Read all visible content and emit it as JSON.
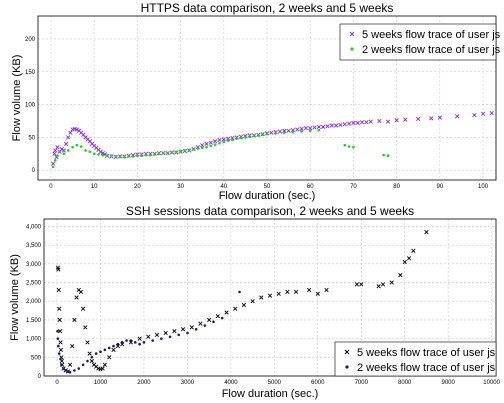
{
  "chart_data": [
    {
      "type": "scatter",
      "title": "HTTPS data comparison, 2 weeks and 5 weeks",
      "xlabel": "Flow duration (sec.)",
      "ylabel": "Flow volume (KB)",
      "xlim": [
        -3,
        103
      ],
      "ylim": [
        -15,
        235
      ],
      "xticks": [
        0,
        10,
        20,
        30,
        40,
        50,
        60,
        70,
        80,
        90,
        100
      ],
      "yticks": [
        0,
        50,
        100,
        150,
        200
      ],
      "grid": true,
      "legend_position": "top-right",
      "series": [
        {
          "name": "5 weeks flow trace of user js",
          "marker": "x",
          "color": "#8a2be2",
          "x": [
            0.5,
            0.8,
            1,
            1.3,
            1.5,
            2,
            2.5,
            3,
            3.5,
            4,
            4.5,
            5,
            5.5,
            6,
            6.5,
            7,
            7.5,
            8,
            8.5,
            9,
            9.5,
            10,
            10.5,
            11,
            11.5,
            12,
            12.5,
            13,
            14,
            15,
            16,
            17,
            18,
            19,
            20,
            21,
            22,
            23,
            24,
            25,
            26,
            27,
            28,
            29,
            30,
            31,
            32,
            33,
            34,
            35,
            36,
            37,
            38,
            39,
            40,
            41,
            42,
            43,
            44,
            45,
            46,
            47,
            48,
            49,
            50,
            51,
            52,
            53,
            54,
            55,
            56,
            57,
            58,
            59,
            60,
            61,
            62,
            63,
            64,
            65,
            66,
            67,
            68,
            69,
            70,
            71,
            72,
            73,
            74,
            76,
            78,
            80,
            82,
            85,
            88,
            90,
            94,
            98,
            100,
            102
          ],
          "y": [
            10,
            25,
            30,
            20,
            35,
            28,
            32,
            30,
            40,
            50,
            57,
            62,
            63,
            62,
            60,
            57,
            54,
            50,
            47,
            44,
            40,
            37,
            34,
            31,
            28,
            26,
            24,
            22,
            21,
            20,
            21,
            21,
            22,
            23,
            24,
            24,
            25,
            25,
            25,
            26,
            26,
            26,
            27,
            27,
            28,
            29,
            30,
            32,
            35,
            38,
            40,
            42,
            44,
            46,
            47,
            48,
            49,
            50,
            51,
            52,
            53,
            53,
            54,
            55,
            56,
            57,
            58,
            59,
            60,
            60,
            61,
            62,
            63,
            64,
            64,
            65,
            66,
            66,
            67,
            68,
            68,
            69,
            70,
            71,
            72,
            72,
            73,
            73,
            74,
            75,
            74,
            76,
            77,
            78,
            79,
            80,
            82,
            84,
            86,
            87
          ]
        },
        {
          "name": "2 weeks flow trace of user js",
          "marker": "dot",
          "color": "#22cc22",
          "x": [
            0.5,
            1,
            1.5,
            2,
            3,
            4,
            5,
            6,
            7,
            8,
            9,
            10,
            11,
            12,
            13,
            14,
            15,
            16,
            17,
            18,
            19,
            20,
            21,
            22,
            23,
            24,
            25,
            26,
            27,
            28,
            29,
            30,
            31,
            32,
            33,
            34,
            35,
            36,
            37,
            38,
            39,
            40,
            41,
            42,
            43,
            44,
            45,
            46,
            47,
            48,
            49,
            50,
            52,
            54,
            56,
            58,
            60,
            62,
            68,
            69,
            70,
            77,
            78
          ],
          "y": [
            5,
            15,
            22,
            28,
            25,
            30,
            35,
            38,
            36,
            30,
            28,
            25,
            24,
            23,
            22,
            22,
            21,
            20,
            20,
            21,
            21,
            22,
            22,
            23,
            23,
            24,
            25,
            26,
            26,
            27,
            28,
            29,
            30,
            31,
            32,
            33,
            34,
            35,
            37,
            39,
            41,
            43,
            45,
            46,
            48,
            49,
            50,
            51,
            52,
            53,
            54,
            55,
            56,
            57,
            58,
            59,
            60,
            61,
            38,
            36,
            35,
            23,
            22
          ]
        }
      ]
    },
    {
      "type": "scatter",
      "title": "SSH sessions data comparison, 2 weeks and 5 weeks",
      "xlabel": "Flow duration (sec.)",
      "ylabel": "Flow volume (KB)",
      "xlim": [
        -300,
        10100
      ],
      "ylim": [
        0,
        4200
      ],
      "xticks": [
        0,
        1000,
        2000,
        3000,
        4000,
        5000,
        6000,
        7000,
        8000,
        9000,
        10000
      ],
      "xtick_labels": [
        "0",
        "1000",
        "2000",
        "3000",
        "4000",
        "5000",
        "6000",
        "7000",
        "8000",
        "9000",
        "10000"
      ],
      "yticks": [
        0,
        500,
        1000,
        1500,
        2000,
        2500,
        3000,
        3500,
        4000
      ],
      "ytick_labels": [
        "0",
        "500",
        "1,000",
        "1,500",
        "2,000",
        "2,500",
        "3,000",
        "3,500",
        "4,000"
      ],
      "grid": true,
      "legend_position": "bottom-right",
      "series": [
        {
          "name": "5 weeks flow trace of user js",
          "marker": "x",
          "color": "#000000",
          "x": [
            20,
            30,
            40,
            50,
            60,
            70,
            80,
            90,
            100,
            110,
            120,
            150,
            200,
            250,
            300,
            350,
            400,
            450,
            500,
            550,
            600,
            650,
            700,
            750,
            800,
            850,
            900,
            950,
            1000,
            1050,
            1100,
            1200,
            1300,
            1400,
            1500,
            1700,
            1900,
            2100,
            2300,
            2500,
            2700,
            2900,
            3100,
            3300,
            3500,
            3700,
            3900,
            4100,
            4300,
            4500,
            4700,
            4900,
            5100,
            5300,
            5500,
            5800,
            6000,
            6200,
            6900,
            7000,
            7400,
            7500,
            7700,
            7900,
            8000,
            8100,
            8200,
            8500
          ],
          "y": [
            2900,
            2850,
            2300,
            1800,
            1500,
            1200,
            900,
            700,
            500,
            400,
            300,
            200,
            150,
            120,
            300,
            800,
            1500,
            2100,
            2300,
            2250,
            1800,
            1300,
            900,
            600,
            400,
            300,
            250,
            200,
            180,
            200,
            300,
            500,
            700,
            800,
            850,
            900,
            1000,
            1050,
            1100,
            1150,
            1200,
            1250,
            1300,
            1400,
            1500,
            1600,
            1700,
            1800,
            1900,
            2000,
            2100,
            2150,
            2200,
            2250,
            2250,
            2300,
            2200,
            2300,
            2450,
            2450,
            2400,
            2450,
            2500,
            2700,
            3050,
            3150,
            3350,
            3850
          ]
        },
        {
          "name": "2 weeks flow trace of user js",
          "marker": "dot",
          "color": "#1a1a6e",
          "x": [
            10,
            20,
            30,
            50,
            80,
            100,
            150,
            200,
            250,
            300,
            400,
            500,
            600,
            700,
            800,
            900,
            1000,
            1100,
            1200,
            1300,
            1400,
            1500,
            1600,
            1700,
            1800,
            1900,
            2000,
            2200,
            2400,
            2600,
            2800,
            3000,
            3200,
            3400,
            3600,
            3800,
            4200
          ],
          "y": [
            1200,
            1000,
            800,
            600,
            450,
            300,
            200,
            150,
            120,
            100,
            150,
            200,
            300,
            400,
            500,
            600,
            650,
            700,
            750,
            800,
            850,
            900,
            950,
            950,
            900,
            850,
            900,
            950,
            1000,
            1050,
            1100,
            1150,
            1250,
            1350,
            1450,
            1550,
            2250
          ]
        }
      ]
    }
  ]
}
